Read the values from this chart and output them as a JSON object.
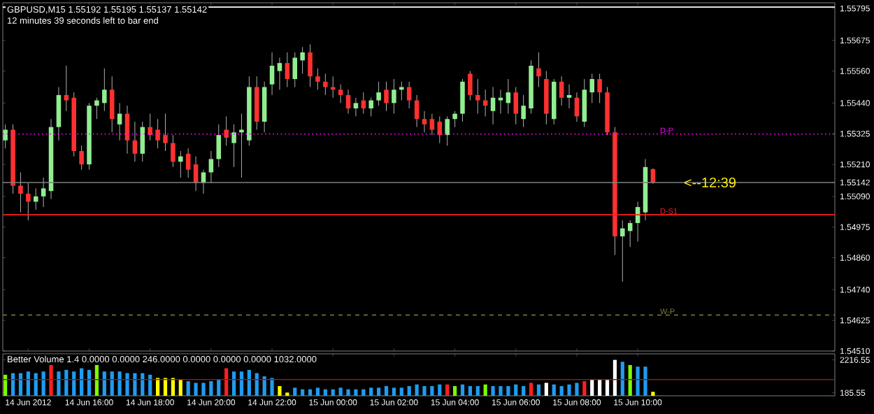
{
  "chart_data": [
    {
      "type": "candlestick",
      "title": "GBPUSD,M15  1.55192 1.55195 1.55137 1.55142",
      "subtitle": "12 minutes 39 seconds left to bar end",
      "x": [
        "2012-06-14T13:15",
        "2012-06-14T13:30",
        "2012-06-14T13:45",
        "2012-06-14T14:00",
        "2012-06-14T14:15",
        "2012-06-14T14:30",
        "2012-06-14T14:45",
        "2012-06-14T15:00",
        "2012-06-14T15:15",
        "2012-06-14T15:30",
        "2012-06-14T15:45",
        "2012-06-14T16:00",
        "2012-06-14T16:15",
        "2012-06-14T16:30",
        "2012-06-14T16:45",
        "2012-06-14T17:00",
        "2012-06-14T17:15",
        "2012-06-14T17:30",
        "2012-06-14T17:45",
        "2012-06-14T18:00",
        "2012-06-14T18:15",
        "2012-06-14T18:30",
        "2012-06-14T18:45",
        "2012-06-14T19:00",
        "2012-06-14T19:15",
        "2012-06-14T19:30",
        "2012-06-14T19:45",
        "2012-06-14T20:00",
        "2012-06-14T20:15",
        "2012-06-14T20:30",
        "2012-06-14T20:45",
        "2012-06-14T21:00",
        "2012-06-14T21:15",
        "2012-06-14T21:30",
        "2012-06-14T21:45",
        "2012-06-14T22:00",
        "2012-06-14T22:15",
        "2012-06-14T22:30",
        "2012-06-14T22:45",
        "2012-06-14T23:00",
        "2012-06-14T23:15",
        "2012-06-14T23:30",
        "2012-06-14T23:45",
        "2012-06-15T00:00",
        "2012-06-15T00:15",
        "2012-06-15T00:30",
        "2012-06-15T00:45",
        "2012-06-15T01:00",
        "2012-06-15T01:15",
        "2012-06-15T01:30",
        "2012-06-15T01:45",
        "2012-06-15T02:00",
        "2012-06-15T02:15",
        "2012-06-15T02:30",
        "2012-06-15T02:45",
        "2012-06-15T03:00",
        "2012-06-15T03:15",
        "2012-06-15T03:30",
        "2012-06-15T03:45",
        "2012-06-15T04:00",
        "2012-06-15T04:15",
        "2012-06-15T04:30",
        "2012-06-15T04:45",
        "2012-06-15T05:00",
        "2012-06-15T05:15",
        "2012-06-15T05:30",
        "2012-06-15T05:45",
        "2012-06-15T06:00",
        "2012-06-15T06:15",
        "2012-06-15T06:30",
        "2012-06-15T06:45",
        "2012-06-15T07:00",
        "2012-06-15T07:15",
        "2012-06-15T07:30",
        "2012-06-15T07:45",
        "2012-06-15T08:00",
        "2012-06-15T08:15",
        "2012-06-15T08:30",
        "2012-06-15T08:45",
        "2012-06-15T09:00",
        "2012-06-15T09:15",
        "2012-06-15T09:30",
        "2012-06-15T09:45",
        "2012-06-15T10:00",
        "2012-06-15T10:15",
        "2012-06-15T10:30"
      ],
      "ohlc": [
        [
          1.553,
          1.5536,
          1.5527,
          1.5534
        ],
        [
          1.5534,
          1.5536,
          1.551,
          1.5513
        ],
        [
          1.5513,
          1.5518,
          1.5503,
          1.551
        ],
        [
          1.551,
          1.5514,
          1.55,
          1.5507
        ],
        [
          1.5507,
          1.5512,
          1.5504,
          1.5509
        ],
        [
          1.5509,
          1.5516,
          1.5505,
          1.5512
        ],
        [
          1.5511,
          1.5538,
          1.5508,
          1.5535
        ],
        [
          1.5535,
          1.555,
          1.553,
          1.5547
        ],
        [
          1.5547,
          1.5558,
          1.5541,
          1.5545
        ],
        [
          1.5546,
          1.5548,
          1.5524,
          1.5526
        ],
        [
          1.5526,
          1.5528,
          1.5519,
          1.5521
        ],
        [
          1.5521,
          1.5544,
          1.5519,
          1.5543
        ],
        [
          1.5543,
          1.5546,
          1.5538,
          1.5545
        ],
        [
          1.5544,
          1.5557,
          1.5541,
          1.5549
        ],
        [
          1.5549,
          1.5554,
          1.5533,
          1.5538
        ],
        [
          1.5536,
          1.5544,
          1.553,
          1.554
        ],
        [
          1.554,
          1.5543,
          1.5525,
          1.553
        ],
        [
          1.553,
          1.5537,
          1.5522,
          1.5525
        ],
        [
          1.5525,
          1.5537,
          1.5522,
          1.5535
        ],
        [
          1.5535,
          1.554,
          1.553,
          1.5532
        ],
        [
          1.5534,
          1.5538,
          1.5527,
          1.553
        ],
        [
          1.5532,
          1.554,
          1.5526,
          1.5529
        ],
        [
          1.5529,
          1.5532,
          1.552,
          1.5522
        ],
        [
          1.5522,
          1.5526,
          1.5516,
          1.5524
        ],
        [
          1.5525,
          1.5527,
          1.5516,
          1.5519
        ],
        [
          1.5521,
          1.5524,
          1.5511,
          1.5514
        ],
        [
          1.5514,
          1.5519,
          1.551,
          1.5518
        ],
        [
          1.5518,
          1.5526,
          1.5514,
          1.5523
        ],
        [
          1.5523,
          1.5536,
          1.552,
          1.5532
        ],
        [
          1.5534,
          1.5539,
          1.5528,
          1.5531
        ],
        [
          1.5529,
          1.5536,
          1.552,
          1.5533
        ],
        [
          1.5533,
          1.554,
          1.5516,
          1.5534
        ],
        [
          1.553,
          1.5554,
          1.5528,
          1.555
        ],
        [
          1.555,
          1.5554,
          1.5534,
          1.5537
        ],
        [
          1.5537,
          1.5552,
          1.5533,
          1.555
        ],
        [
          1.5551,
          1.5563,
          1.5547,
          1.5558
        ],
        [
          1.5556,
          1.5561,
          1.5549,
          1.5559
        ],
        [
          1.5559,
          1.5563,
          1.555,
          1.5553
        ],
        [
          1.5553,
          1.5563,
          1.555,
          1.5561
        ],
        [
          1.556,
          1.5565,
          1.5555,
          1.5563
        ],
        [
          1.5563,
          1.5566,
          1.555,
          1.5554
        ],
        [
          1.5554,
          1.5557,
          1.5549,
          1.5552
        ],
        [
          1.5552,
          1.5555,
          1.5547,
          1.555
        ],
        [
          1.555,
          1.5554,
          1.5546,
          1.5549
        ],
        [
          1.5549,
          1.5551,
          1.5544,
          1.5547
        ],
        [
          1.5547,
          1.5549,
          1.554,
          1.5542
        ],
        [
          1.5542,
          1.5546,
          1.5539,
          1.5544
        ],
        [
          1.5545,
          1.5548,
          1.554,
          1.5542
        ],
        [
          1.5542,
          1.5546,
          1.5539,
          1.5545
        ],
        [
          1.5545,
          1.5552,
          1.5543,
          1.5548
        ],
        [
          1.5549,
          1.5552,
          1.5541,
          1.5544
        ],
        [
          1.5544,
          1.5553,
          1.554,
          1.5549
        ],
        [
          1.5549,
          1.5552,
          1.5545,
          1.555
        ],
        [
          1.555,
          1.5552,
          1.5542,
          1.5545
        ],
        [
          1.5545,
          1.5547,
          1.5535,
          1.5538
        ],
        [
          1.5538,
          1.5541,
          1.5533,
          1.5536
        ],
        [
          1.5538,
          1.554,
          1.5532,
          1.5534
        ],
        [
          1.5537,
          1.5539,
          1.5529,
          1.5532
        ],
        [
          1.5532,
          1.5539,
          1.5528,
          1.5538
        ],
        [
          1.5538,
          1.5541,
          1.5535,
          1.554
        ],
        [
          1.554,
          1.5553,
          1.5537,
          1.5552
        ],
        [
          1.5555,
          1.5556,
          1.5545,
          1.5547
        ],
        [
          1.5547,
          1.5553,
          1.554,
          1.5545
        ],
        [
          1.5545,
          1.5549,
          1.5539,
          1.5543
        ],
        [
          1.5541,
          1.555,
          1.5536,
          1.5546
        ],
        [
          1.5545,
          1.5549,
          1.554,
          1.5546
        ],
        [
          1.5544,
          1.5553,
          1.554,
          1.5548
        ],
        [
          1.5548,
          1.555,
          1.5536,
          1.554
        ],
        [
          1.5538,
          1.5547,
          1.5535,
          1.5543
        ],
        [
          1.5542,
          1.556,
          1.554,
          1.5558
        ],
        [
          1.5557,
          1.5563,
          1.555,
          1.5554
        ],
        [
          1.5553,
          1.5556,
          1.5536,
          1.554
        ],
        [
          1.5538,
          1.5553,
          1.5536,
          1.5552
        ],
        [
          1.5552,
          1.5554,
          1.5543,
          1.5546
        ],
        [
          1.5546,
          1.5551,
          1.5542,
          1.5547
        ],
        [
          1.5546,
          1.5548,
          1.5537,
          1.5539
        ],
        [
          1.5537,
          1.5553,
          1.5535,
          1.5549
        ],
        [
          1.5548,
          1.5555,
          1.5544,
          1.5553
        ],
        [
          1.5553,
          1.5555,
          1.5544,
          1.5548
        ],
        [
          1.5548,
          1.555,
          1.5532,
          1.5533
        ],
        [
          1.5533,
          1.5535,
          1.5487,
          1.5494
        ],
        [
          1.5494,
          1.55,
          1.5477,
          1.5497
        ],
        [
          1.5496,
          1.55,
          1.549,
          1.5499
        ],
        [
          1.5499,
          1.5507,
          1.5492,
          1.5505
        ],
        [
          1.5503,
          1.5523,
          1.55,
          1.552
        ],
        [
          1.55192,
          1.55195,
          1.55137,
          1.55142
        ]
      ],
      "xlim": [
        "2012-06-14T13:10",
        "2012-06-15T16:28"
      ],
      "ylim": [
        1.5451,
        1.55816
      ],
      "xticks": [
        "2012-06-14T14:00",
        "2012-06-14T16:00",
        "2012-06-14T18:00",
        "2012-06-14T20:00",
        "2012-06-14T22:00",
        "2012-06-15T00:00",
        "2012-06-15T02:00",
        "2012-06-15T04:00",
        "2012-06-15T06:00",
        "2012-06-15T08:00",
        "2012-06-15T10:00"
      ],
      "yticks": [
        1.55795,
        1.55675,
        {
          "value": 1.5556,
          "label": "1.55560"
        },
        {
          "value": 1.5544,
          "label": "1.55440"
        },
        1.55325,
        {
          "value": 1.5521,
          "label": "1.55210"
        },
        1.55142,
        {
          "value": 1.5509,
          "label": "1.55090"
        },
        1.54975,
        {
          "value": 1.5486,
          "label": "1.54860"
        },
        {
          "value": 1.5474,
          "label": "1.54740"
        },
        1.54625,
        {
          "value": 1.5451,
          "label": "1.54510"
        }
      ],
      "tick_labels": "y",
      "ref_lines": [
        {
          "axis": "y",
          "value": 1.558,
          "color": "#ffffff",
          "line_style": "solid"
        },
        {
          "axis": "y",
          "value": 1.55324,
          "label": "D-P",
          "color": "#ff00ff",
          "line_style": "dotted"
        },
        {
          "axis": "y",
          "value": 1.55142,
          "color": "#808080",
          "line_style": "solid"
        },
        {
          "axis": "y",
          "value": 1.55021,
          "label": "D-S1",
          "color": "#ff2020",
          "line_style": "solid"
        },
        {
          "axis": "y",
          "value": 1.54645,
          "label": "W-P",
          "color": "#808040",
          "line_style": "dashed"
        }
      ],
      "annotations": [
        {
          "text": "<--12:39",
          "x": "2012-06-15T11:30",
          "y": 1.55142
        }
      ]
    },
    {
      "type": "bar",
      "title": "Better Volume 1.4 0.0000 0.0000 246.0000 0.0000 0.0000 0.0000 1032.0000",
      "x": [
        "2012-06-14T13:15",
        "2012-06-14T13:30",
        "2012-06-14T13:45",
        "2012-06-14T14:00",
        "2012-06-14T14:15",
        "2012-06-14T14:30",
        "2012-06-14T14:45",
        "2012-06-14T15:00",
        "2012-06-14T15:15",
        "2012-06-14T15:30",
        "2012-06-14T15:45",
        "2012-06-14T16:00",
        "2012-06-14T16:15",
        "2012-06-14T16:30",
        "2012-06-14T16:45",
        "2012-06-14T17:00",
        "2012-06-14T17:15",
        "2012-06-14T17:30",
        "2012-06-14T17:45",
        "2012-06-14T18:00",
        "2012-06-14T18:15",
        "2012-06-14T18:30",
        "2012-06-14T18:45",
        "2012-06-14T19:00",
        "2012-06-14T19:15",
        "2012-06-14T19:30",
        "2012-06-14T19:45",
        "2012-06-14T20:00",
        "2012-06-14T20:15",
        "2012-06-14T20:30",
        "2012-06-14T20:45",
        "2012-06-14T21:00",
        "2012-06-14T21:15",
        "2012-06-14T21:30",
        "2012-06-14T21:45",
        "2012-06-14T22:00",
        "2012-06-14T22:15",
        "2012-06-14T22:30",
        "2012-06-14T22:45",
        "2012-06-14T23:00",
        "2012-06-14T23:15",
        "2012-06-14T23:30",
        "2012-06-14T23:45",
        "2012-06-15T00:00",
        "2012-06-15T00:15",
        "2012-06-15T00:30",
        "2012-06-15T00:45",
        "2012-06-15T01:00",
        "2012-06-15T01:15",
        "2012-06-15T01:30",
        "2012-06-15T01:45",
        "2012-06-15T02:00",
        "2012-06-15T02:15",
        "2012-06-15T02:30",
        "2012-06-15T02:45",
        "2012-06-15T03:00",
        "2012-06-15T03:15",
        "2012-06-15T03:30",
        "2012-06-15T03:45",
        "2012-06-15T04:00",
        "2012-06-15T04:15",
        "2012-06-15T04:30",
        "2012-06-15T04:45",
        "2012-06-15T05:00",
        "2012-06-15T05:15",
        "2012-06-15T05:30",
        "2012-06-15T05:45",
        "2012-06-15T06:00",
        "2012-06-15T06:15",
        "2012-06-15T06:30",
        "2012-06-15T06:45",
        "2012-06-15T07:00",
        "2012-06-15T07:15",
        "2012-06-15T07:30",
        "2012-06-15T07:45",
        "2012-06-15T08:00",
        "2012-06-15T08:15",
        "2012-06-15T08:30",
        "2012-06-15T08:45",
        "2012-06-15T09:00",
        "2012-06-15T09:15",
        "2012-06-15T09:30",
        "2012-06-15T09:45",
        "2012-06-15T10:00",
        "2012-06-15T10:15",
        "2012-06-15T10:30"
      ],
      "values": [
        1300,
        1400,
        1400,
        1500,
        1400,
        1500,
        1900,
        1500,
        1600,
        1500,
        1700,
        1600,
        1900,
        1500,
        1500,
        1500,
        1400,
        1400,
        1400,
        1300,
        1100,
        1100,
        1100,
        1000,
        900,
        800,
        800,
        900,
        1000,
        1700,
        1500,
        1500,
        1600,
        1400,
        1200,
        1100,
        600,
        200,
        500,
        400,
        400,
        500,
        400,
        400,
        500,
        400,
        400,
        400,
        500,
        500,
        600,
        500,
        500,
        600,
        700,
        600,
        600,
        700,
        700,
        600,
        700,
        600,
        600,
        700,
        600,
        600,
        600,
        700,
        600,
        800,
        700,
        800,
        700,
        600,
        700,
        800,
        900,
        1000,
        1000,
        1000,
        2216.55,
        2100,
        1900,
        1800,
        1800,
        246
      ],
      "colors": [
        "#7cfc00",
        "#1e9cf0",
        "#1e9cf0",
        "#1e9cf0",
        "#1e9cf0",
        "#1e9cf0",
        "#ff2020",
        "#1e9cf0",
        "#1e9cf0",
        "#1e9cf0",
        "#1e9cf0",
        "#1e9cf0",
        "#7cfc00",
        "#1e9cf0",
        "#1e9cf0",
        "#1e9cf0",
        "#1e9cf0",
        "#1e9cf0",
        "#1e9cf0",
        "#1e9cf0",
        "#ffff00",
        "#ffff00",
        "#ffff00",
        "#ffff00",
        "#1e9cf0",
        "#1e9cf0",
        "#1e9cf0",
        "#1e9cf0",
        "#1e9cf0",
        "#ff2020",
        "#1e9cf0",
        "#1e9cf0",
        "#1e9cf0",
        "#1e9cf0",
        "#1e9cf0",
        "#1e9cf0",
        "#ffff00",
        "#ffff00",
        "#1e9cf0",
        "#1e9cf0",
        "#1e9cf0",
        "#1e9cf0",
        "#1e9cf0",
        "#1e9cf0",
        "#1e9cf0",
        "#1e9cf0",
        "#1e9cf0",
        "#1e9cf0",
        "#1e9cf0",
        "#1e9cf0",
        "#1e9cf0",
        "#1e9cf0",
        "#1e9cf0",
        "#1e9cf0",
        "#1e9cf0",
        "#1e9cf0",
        "#1e9cf0",
        "#1e9cf0",
        "#ff2020",
        "#7cfc00",
        "#1e9cf0",
        "#1e9cf0",
        "#1e9cf0",
        "#7cfc00",
        "#1e9cf0",
        "#1e9cf0",
        "#1e9cf0",
        "#1e9cf0",
        "#1e9cf0",
        "#ff2020",
        "#1e9cf0",
        "#ffffff",
        "#1e9cf0",
        "#1e9cf0",
        "#1e9cf0",
        "#1e9cf0",
        "#ff2020",
        "#ffffff",
        "#ffffff",
        "#ffffff",
        "#ffffff",
        "#1e9cf0",
        "#7cfc00",
        "#1e9cf0",
        "#1e9cf0",
        "#ffff00"
      ],
      "xlim": [
        "2012-06-14T13:10",
        "2012-06-15T16:28"
      ],
      "ylim": [
        0,
        2590
      ],
      "xticks": [
        {
          "value": "2012-06-14T14:00",
          "label": "14 Jun 2012"
        },
        {
          "value": "2012-06-14T16:00",
          "label": "14 Jun 16:00"
        },
        {
          "value": "2012-06-14T18:00",
          "label": "14 Jun 18:00"
        },
        {
          "value": "2012-06-14T20:00",
          "label": "14 Jun 20:00"
        },
        {
          "value": "2012-06-14T22:00",
          "label": "14 Jun 22:00"
        },
        {
          "value": "2012-06-15T00:00",
          "label": "15 Jun 00:00"
        },
        {
          "value": "2012-06-15T02:00",
          "label": "15 Jun 02:00"
        },
        {
          "value": "2012-06-15T04:00",
          "label": "15 Jun 04:00"
        },
        {
          "value": "2012-06-15T06:00",
          "label": "15 Jun 06:00"
        },
        {
          "value": "2012-06-15T08:00",
          "label": "15 Jun 08:00"
        },
        {
          "value": "2012-06-15T10:00",
          "label": "15 Jun 10:00"
        }
      ],
      "yticks": [
        2216.55,
        185.55
      ],
      "ref_lines": [
        {
          "axis": "y",
          "value": 1000,
          "color": "#8b1a1a",
          "line_style": "solid"
        }
      ]
    }
  ]
}
